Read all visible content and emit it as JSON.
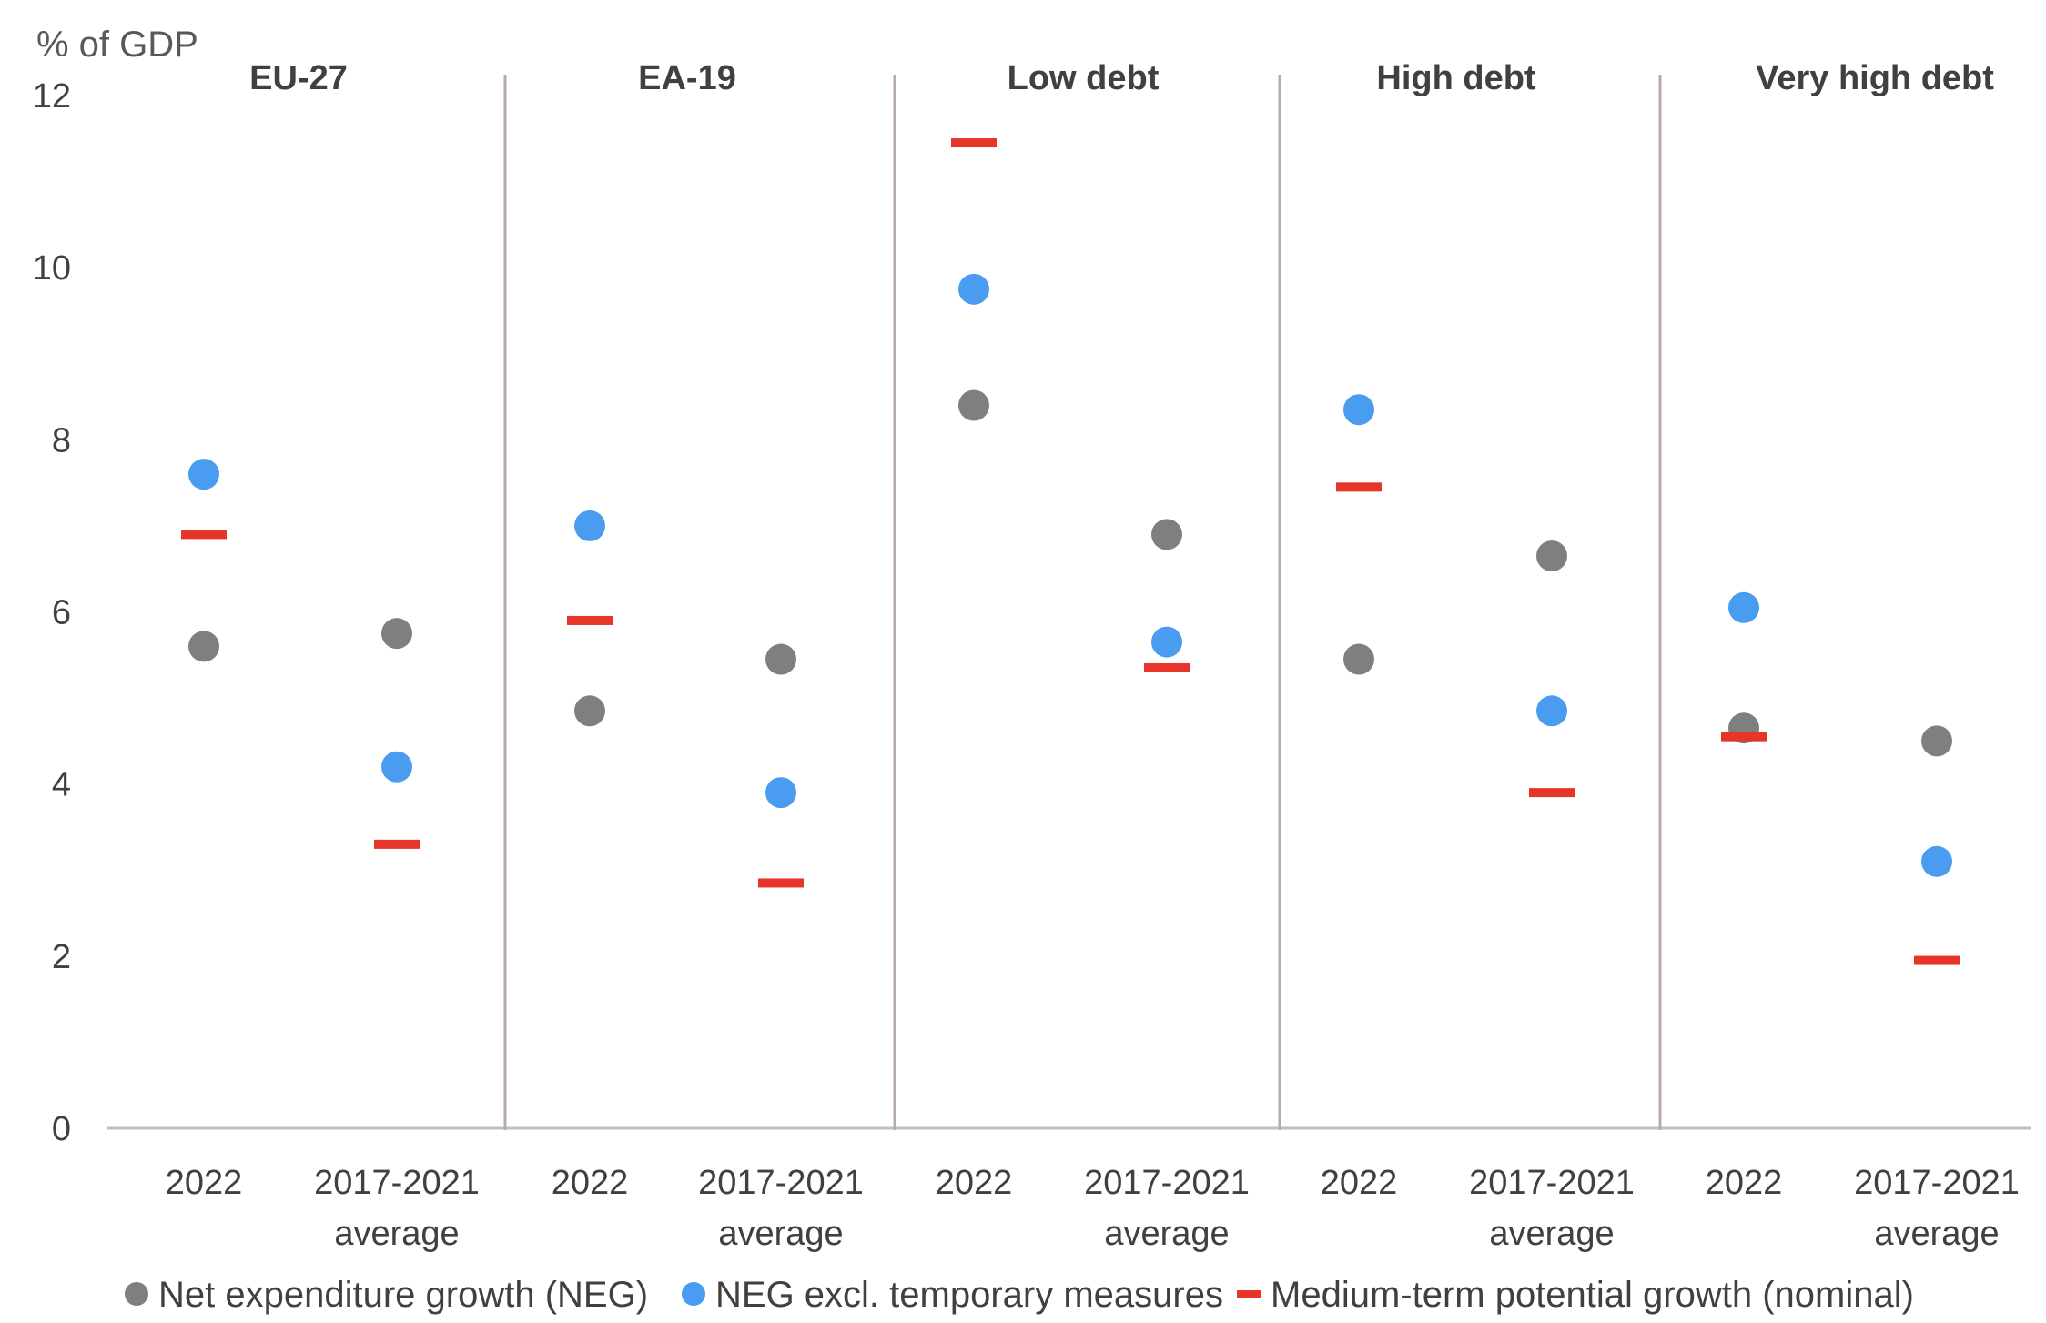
{
  "chart_data": {
    "type": "scatter",
    "ylabel": "% of GDP",
    "ylim": [
      0,
      12
    ],
    "yticks": [
      0,
      2,
      4,
      6,
      8,
      10,
      12
    ],
    "grid": false,
    "legend_position": "bottom",
    "groups": [
      "EU-27",
      "EA-19",
      "Low debt",
      "High debt",
      "Very high debt"
    ],
    "categories": [
      "2022",
      "2017-2021 average"
    ],
    "category_labels": [
      {
        "line1": "2022",
        "line2": ""
      },
      {
        "line1": "2017-2021",
        "line2": "average"
      }
    ],
    "series": [
      {
        "name": "Net expenditure growth (NEG)",
        "marker": "circle",
        "color": "#7f7f7f",
        "values": [
          [
            5.6,
            5.75
          ],
          [
            4.85,
            5.45
          ],
          [
            8.4,
            6.9
          ],
          [
            5.45,
            6.65
          ],
          [
            4.65,
            4.5
          ]
        ]
      },
      {
        "name": "NEG excl. temporary measures",
        "marker": "circle",
        "color": "#4a9cf0",
        "values": [
          [
            7.6,
            4.2
          ],
          [
            7.0,
            3.9
          ],
          [
            9.75,
            5.65
          ],
          [
            8.35,
            4.85
          ],
          [
            6.05,
            3.1
          ]
        ]
      },
      {
        "name": "Medium-term potential growth (nominal)",
        "marker": "dash",
        "color": "#e8352a",
        "values": [
          [
            6.9,
            3.3
          ],
          [
            5.9,
            2.85
          ],
          [
            11.45,
            5.35
          ],
          [
            7.45,
            3.9
          ],
          [
            4.55,
            1.95
          ]
        ]
      }
    ]
  }
}
